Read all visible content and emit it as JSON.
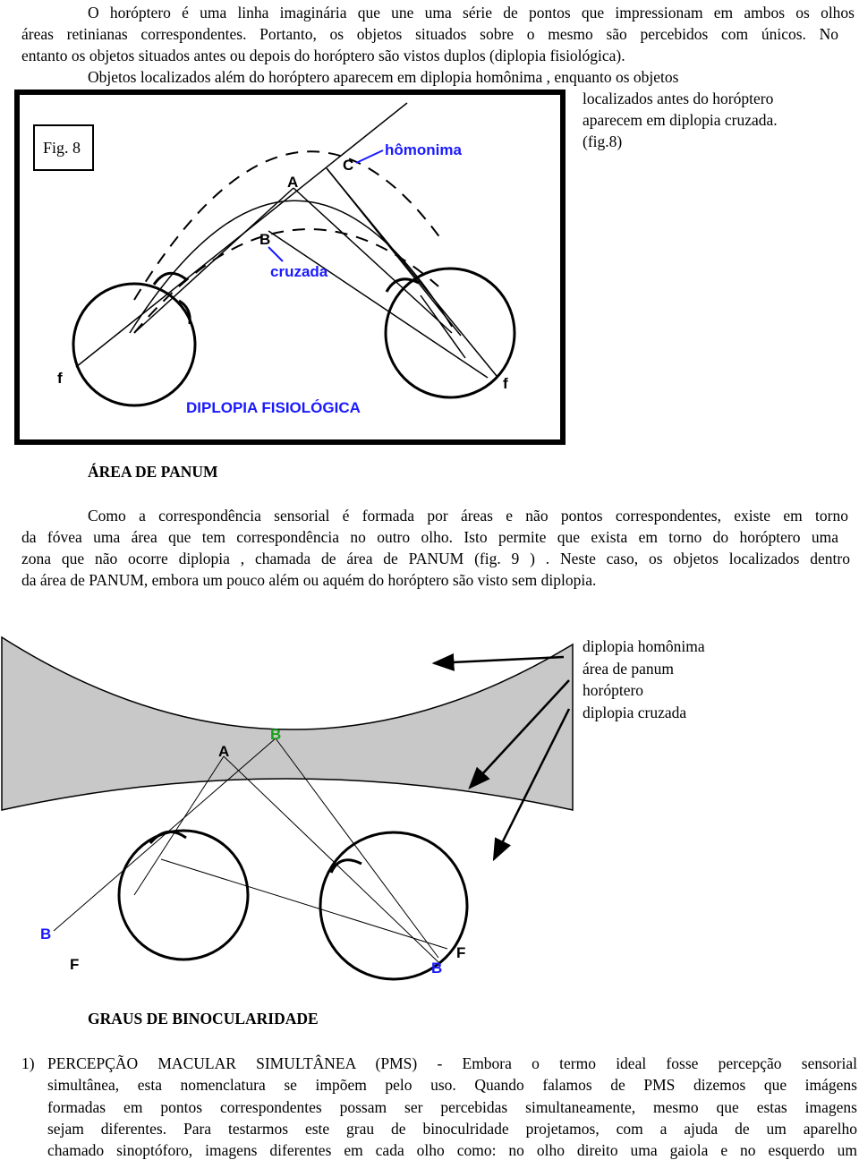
{
  "intro": [
    "O horóptero é uma linha imaginária que une uma série de pontos que impressionam em ambos os olhos",
    "áreas retinianas correspondentes. Portanto, os objetos situados sobre o mesmo são percebidos com únicos. No",
    "entanto os objetos situados antes ou depois do horóptero são vistos duplos (diplopia fisiológica)."
  ],
  "intro2": [
    "Objetos localizados além do horóptero aparecem em diplopia homônima , enquanto os objetos",
    "localizados antes do horóptero",
    "aparecem em diplopia cruzada.",
    "(fig.8)"
  ],
  "figure8": {
    "caption": "Fig. 8",
    "title": "DIPLOPIA FISIOLÓGICA",
    "labels": {
      "a": "A",
      "b": "B",
      "c": "C",
      "homonima": "hômonima",
      "cruzada": "cruzada",
      "f_left": "f",
      "f_right": "f"
    }
  },
  "panum": {
    "heading": "ÁREA DE PANUM",
    "lines": [
      "Como a correspondência sensorial  é formada por áreas e não pontos correspondentes, existe em torno",
      "da fóvea uma área que tem correspondência no outro olho. Isto permite que exista em torno do horóptero uma",
      "zona que não ocorre diplopia , chamada de área de PANUM (fig. 9 ) . Neste caso, os objetos localizados dentro",
      "da área de PANUM, embora um pouco além ou aquém do horóptero são visto sem diplopia."
    ]
  },
  "figure9": {
    "legend": [
      "diplopia homônima",
      "área de panum",
      "horóptero",
      "diplopia cruzada"
    ],
    "labels": {
      "b_top": "B",
      "a": "A",
      "b_left": "B",
      "f_left": "F",
      "f_right": "F",
      "b_right": "B"
    }
  },
  "graus": {
    "heading": "GRAUS DE BINOCULARIDADE",
    "item": {
      "number": "1)",
      "lines": [
        "PERCEPÇÃO MACULAR SIMULTÂNEA   (PMS) -  Embora  o termo ideal fosse percepção sensorial",
        "simultânea, esta nomenclatura  se impõem pelo uso.  Quando falamos de PMS dizemos que imágens",
        "formadas em pontos correspondentes possam ser percebidas simultaneamente, mesmo que estas imagens",
        "sejam diferentes. Para testarmos este grau de binoculridade projetamos, com a ajuda de um aparelho",
        "chamado sinoptóforo, imagens diferentes em cada olho como: no olho direito uma gaiola e no esquerdo um"
      ]
    }
  }
}
